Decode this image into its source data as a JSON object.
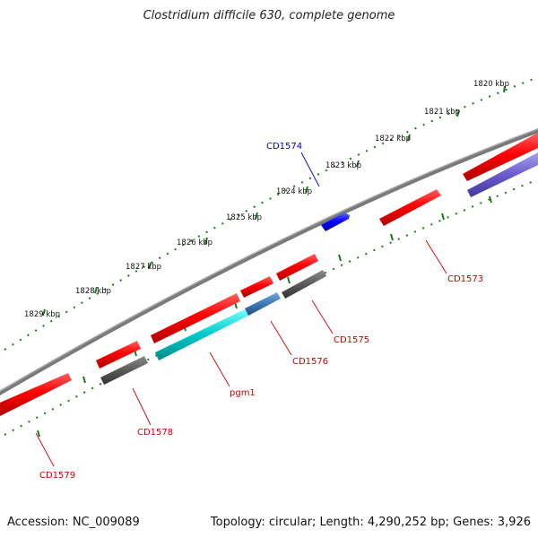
{
  "title": "Clostridium difficile 630, complete genome",
  "accession": "Accession: NC_009089",
  "topology": "Topology: circular; Length: 4,290,252 bp; Genes: 3,926",
  "colors": {
    "backbone": "#808080",
    "ticks": "#1a7a1a",
    "gene_red": "#ff0000",
    "gene_gray": "#5a5a5a",
    "gene_cyan": "#00c8c8",
    "gene_steel": "#3c78b4",
    "gene_blue": "#0000ff",
    "gene_purple": "#6a5acd",
    "label_red": "#cc0000",
    "label_blue": "#0000cc"
  },
  "scale": {
    "labels": [
      "1820 kbp",
      "1821 kbp",
      "1822 kbp",
      "1823 kbp",
      "1824 kbp",
      "1825 kbp",
      "1826 kbp",
      "1827 kbp",
      "1828 kbp",
      "1829 kbp"
    ]
  },
  "gene_labels": [
    {
      "name": "CD1574",
      "color": "blue"
    },
    {
      "name": "CD1573",
      "color": "red"
    },
    {
      "name": "CD1575",
      "color": "red"
    },
    {
      "name": "CD1576",
      "color": "red"
    },
    {
      "name": "pgm1",
      "color": "red"
    },
    {
      "name": "CD1578",
      "color": "red"
    },
    {
      "name": "CD1579",
      "color": "red"
    }
  ]
}
